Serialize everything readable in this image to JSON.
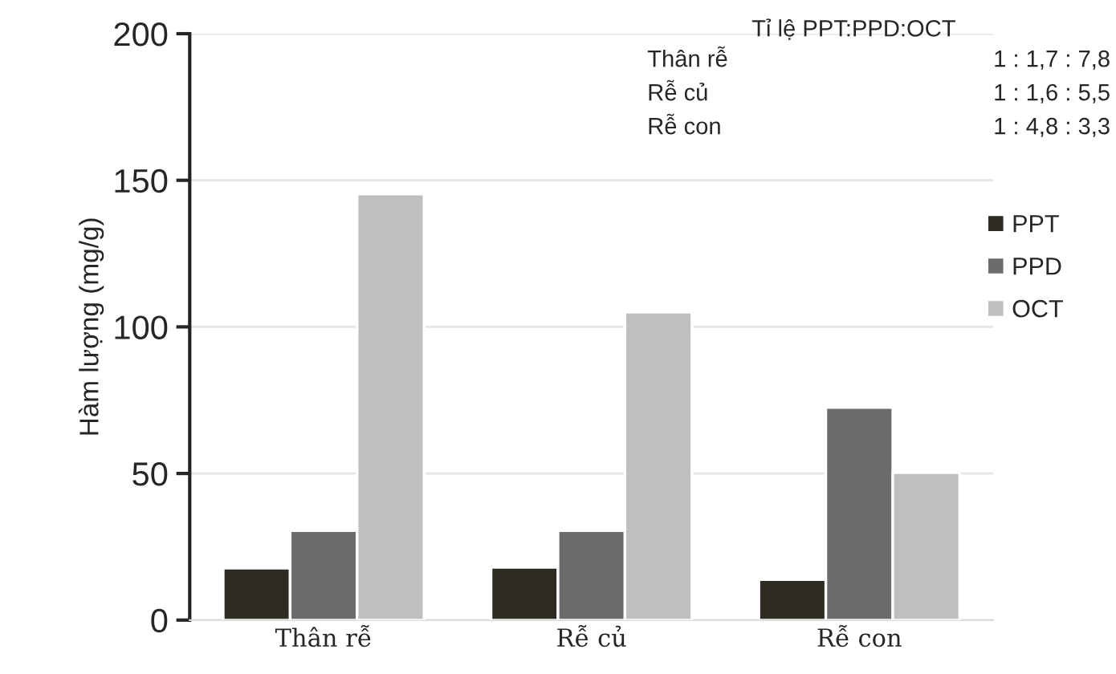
{
  "chart_data": {
    "type": "bar",
    "ylabel": "Hàm lượng (mg/g)",
    "categories": [
      "Thân rễ",
      "Rễ củ",
      "Rễ con"
    ],
    "series": [
      {
        "name": "PPT",
        "color": "#2e2b24",
        "values": [
          17.7,
          18,
          13.8
        ]
      },
      {
        "name": "PPD",
        "color": "#6b6b6b",
        "values": [
          30.5,
          30.5,
          72.5
        ]
      },
      {
        "name": "OCT",
        "color": "#bfbfbf",
        "values": [
          145.3,
          105,
          50.3
        ]
      }
    ],
    "ylim": [
      0,
      200
    ],
    "yticks": [
      0,
      50,
      100,
      150,
      200
    ],
    "grid": "y",
    "legend": "right",
    "annotations": [
      "Tỉ lệ PPT:PPD:OCT",
      "Thân rễ",
      "1 : 1,7 : 7,8",
      "Rễ củ",
      "1 : 1,6 : 5,5",
      "Rễ con",
      "1 : 4,8 : 3,3"
    ]
  }
}
